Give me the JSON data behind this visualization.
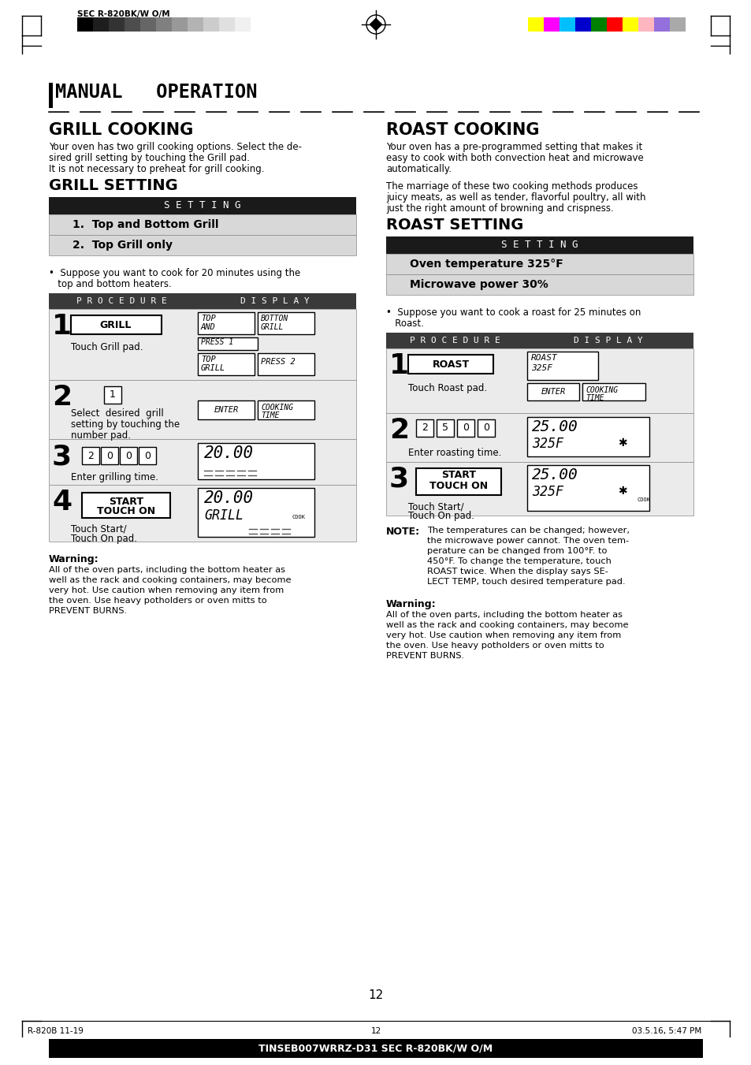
{
  "page_title": "MANUAL   OPERATION",
  "header_text": "SEC R-820BK/W O/M",
  "grill_cooking_title": "GRILL COOKING",
  "grill_setting_title": "GRILL SETTING",
  "setting_header": "S E T T I N G",
  "grill_settings": [
    "1.  Top and Bottom Grill",
    "2.  Top Grill only"
  ],
  "grill_suppose_1": "•  Suppose you want to cook for 20 minutes using the",
  "grill_suppose_2": "   top and bottom heaters.",
  "proc_header": "P R O C E D U R E",
  "disp_header": "D I S P L A Y",
  "roast_cooking_title": "ROAST COOKING",
  "roast_setting_title": "ROAST SETTING",
  "roast_settings": [
    "Oven temperature 325°F",
    "Microwave power 30%"
  ],
  "roast_suppose_1": "•  Suppose you want to cook a roast for 25 minutes on",
  "roast_suppose_2": "   Roast.",
  "note_bold": "NOTE:",
  "note_lines": [
    "The temperatures can be changed; however,",
    "the microwave power cannot. The oven tem-",
    "perature can be changed from 100°F. to",
    "450°F. To change the temperature, touch",
    "ROAST twice. When the display says SE-",
    "LECT TEMP, touch desired temperature pad."
  ],
  "warning_title": "Warning:",
  "warning_lines_left": [
    "All of the oven parts, including the bottom heater as",
    "well as the rack and cooking containers, may become",
    "very hot. Use caution when removing any item from",
    "the oven. Use heavy potholders or oven mitts to",
    "PREVENT BURNS."
  ],
  "warning_lines_right": [
    "All of the oven parts, including the bottom heater as",
    "well as the rack and cooking containers, may become",
    "very hot. Use caution when removing any item from",
    "the oven. Use heavy potholders or oven mitts to",
    "PREVENT BURNS."
  ],
  "page_num": "12",
  "footer_left": "R-820B 11-19",
  "footer_mid": "12",
  "footer_right": "03.5.16, 5:47 PM",
  "footer_bottom": "TINSEB007WRRZ-D31 SEC R-820BK/W O/M",
  "grill_cooking_lines": [
    "Your oven has two grill cooking options. Select the de-",
    "sired grill setting by touching the Grill pad.",
    "It is not necessary to preheat for grill cooking."
  ],
  "roast_cooking_lines": [
    "Your oven has a pre-programmed setting that makes it",
    "easy to cook with both convection heat and microwave",
    "automatically.",
    "",
    "The marriage of these two cooking methods produces",
    "juicy meats, as well as tender, flavorful poultry, all with",
    "just the right amount of browning and crispness."
  ],
  "bar_colors_left": [
    "#000000",
    "#1e1e1e",
    "#333333",
    "#4d4d4d",
    "#666666",
    "#808080",
    "#999999",
    "#b3b3b3",
    "#cccccc",
    "#e0e0e0",
    "#f0f0f0",
    "#ffffff"
  ],
  "bar_colors_right": [
    "#ffff00",
    "#ff00ff",
    "#00bfff",
    "#0000cd",
    "#008000",
    "#ff0000",
    "#ffff00",
    "#ffb6c1",
    "#9370db",
    "#a9a9a9"
  ]
}
